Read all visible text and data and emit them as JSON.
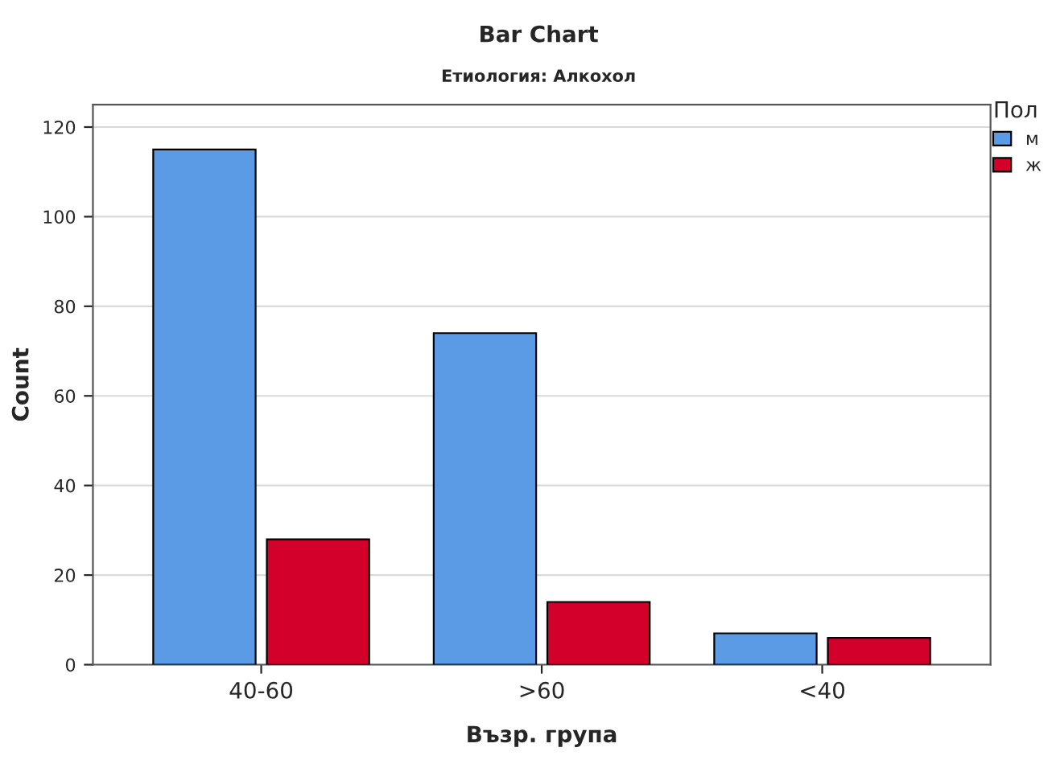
{
  "chart_data": {
    "type": "bar",
    "title": "Bar Chart",
    "subtitle": "Етиология: Алкохол",
    "xlabel": "Възр. група",
    "ylabel": "Count",
    "legend_title": "Пол",
    "categories": [
      "40-60",
      ">60",
      "<40"
    ],
    "series": [
      {
        "name": "м",
        "color": "#5b9be6",
        "values": [
          115,
          74,
          7
        ]
      },
      {
        "name": "ж",
        "color": "#d2002a",
        "values": [
          28,
          14,
          6
        ]
      }
    ],
    "ylim": [
      0,
      125
    ],
    "yticks": [
      0,
      20,
      40,
      60,
      80,
      100,
      120
    ],
    "grid": "y",
    "legend": "top right"
  }
}
